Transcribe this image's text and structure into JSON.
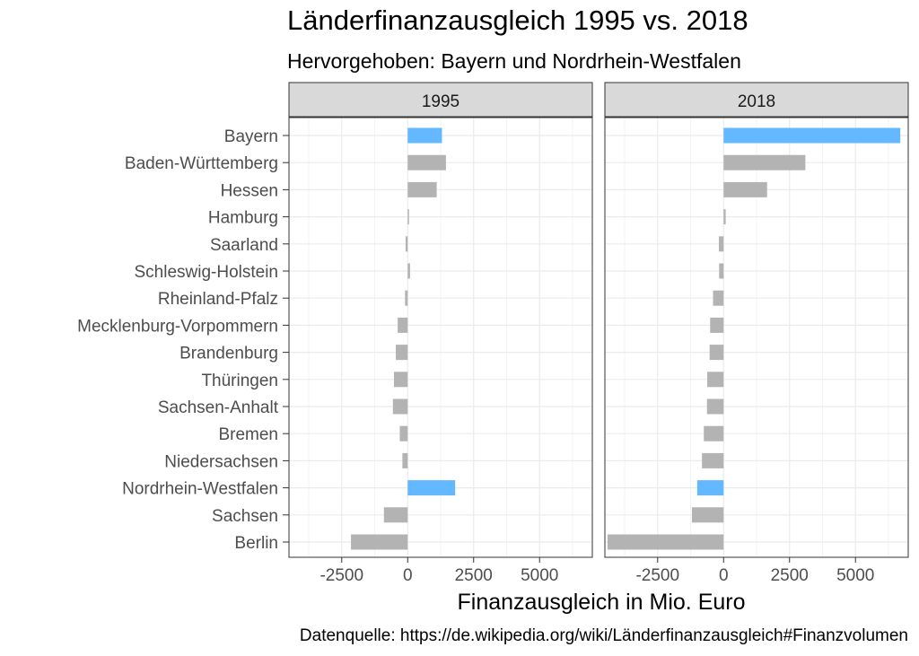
{
  "title": "Länderfinanzausgleich 1995 vs. 2018",
  "subtitle": "Hervorgehoben: Bayern und Nordrhein-Westfalen",
  "xlabel": "Finanzausgleich in Mio. Euro",
  "caption": "Datenquelle: https://de.wikipedia.org/wiki/Länderfinanzausgleich#Finanzvolumen",
  "colors": {
    "highlight": "#63b8ff",
    "default": "#b3b3b3",
    "strip": "#d9d9d9",
    "grid": "#ebebeb"
  },
  "chart_data": {
    "type": "bar",
    "orientation": "horizontal",
    "xlim": [
      -4500,
      7000
    ],
    "xticks": [
      -2500,
      0,
      2500,
      5000
    ],
    "tick_labels": [
      "-2500",
      "0",
      "2500",
      "5000"
    ],
    "grid": true,
    "categories": [
      "Bayern",
      "Baden-Württemberg",
      "Hessen",
      "Hamburg",
      "Saarland",
      "Schleswig-Holstein",
      "Rheinland-Pfalz",
      "Mecklenburg-Vorpommern",
      "Brandenburg",
      "Thüringen",
      "Sachsen-Anhalt",
      "Bremen",
      "Niedersachsen",
      "Nordrhein-Westfalen",
      "Sachsen",
      "Berlin"
    ],
    "highlighted": [
      "Bayern",
      "Nordrhein-Westfalen"
    ],
    "panels": [
      {
        "label": "1995",
        "values": [
          1300,
          1450,
          1100,
          50,
          -80,
          90,
          -100,
          -380,
          -450,
          -520,
          -560,
          -300,
          -200,
          1800,
          -900,
          -2150
        ]
      },
      {
        "label": "2018",
        "values": [
          6700,
          3100,
          1650,
          80,
          -180,
          -170,
          -400,
          -510,
          -530,
          -620,
          -630,
          -750,
          -820,
          -1000,
          -1200,
          -4400
        ]
      }
    ]
  }
}
